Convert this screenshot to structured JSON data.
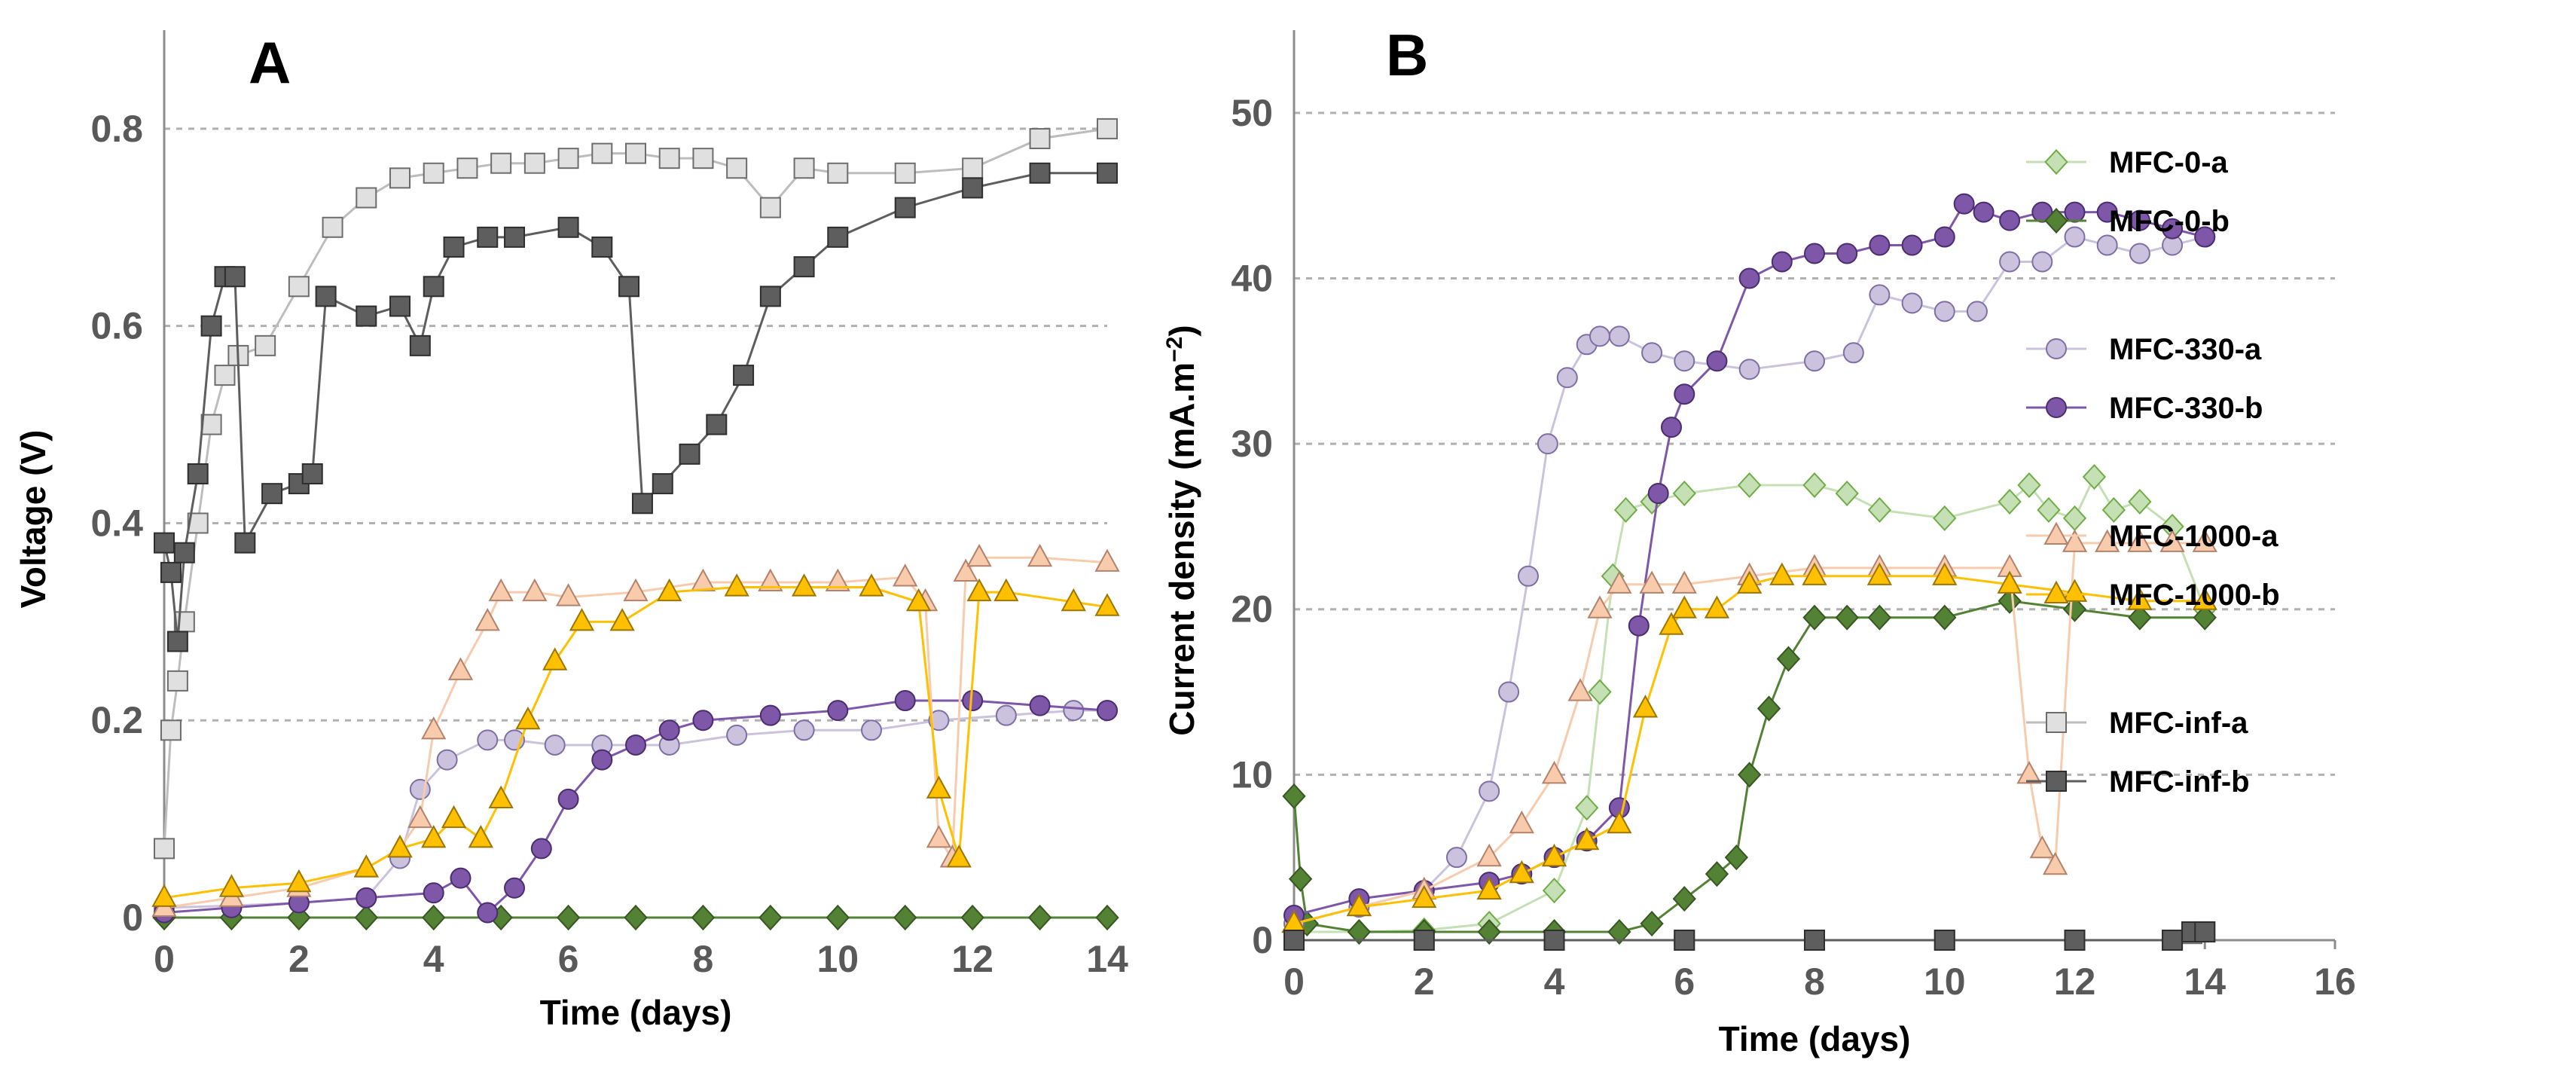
{
  "chart_data": [
    {
      "panel": "A",
      "type": "scatter",
      "title": "A",
      "xlabel": "Time (days)",
      "ylabel": "Voltage (V)",
      "xlim": [
        0,
        14
      ],
      "ylim": [
        0,
        0.9
      ],
      "xticks": [
        "0",
        "2",
        "4",
        "6",
        "8",
        "10",
        "12",
        "14"
      ],
      "yticks": [
        "0",
        "0.2",
        "0.4",
        "0.6",
        "0.8"
      ],
      "grid": "horizontal dashed",
      "series": [
        {
          "name": "MFC-0-a",
          "color": "#c5e0b4",
          "edge": "#70ad47",
          "marker": "diamond",
          "x": [
            0,
            1,
            2,
            3,
            4,
            5,
            6,
            7,
            8,
            9,
            10,
            11,
            12,
            13,
            14
          ],
          "y": [
            0,
            0,
            0,
            0,
            0,
            0,
            0,
            0,
            0,
            0,
            0,
            0,
            0,
            0,
            0
          ]
        },
        {
          "name": "MFC-0-b",
          "color": "#548235",
          "edge": "#385723",
          "marker": "diamond",
          "x": [
            0,
            1,
            2,
            3,
            4,
            5,
            6,
            7,
            8,
            9,
            10,
            11,
            12,
            13,
            14
          ],
          "y": [
            0,
            0,
            0,
            0,
            0,
            0,
            0,
            0,
            0,
            0,
            0,
            0,
            0,
            0,
            0
          ]
        },
        {
          "name": "MFC-330-a",
          "color": "#cbc3dd",
          "edge": "#7f6fa6",
          "marker": "circle",
          "x": [
            0,
            1,
            2,
            3,
            3.5,
            3.8,
            4.2,
            4.8,
            5.2,
            5.8,
            6.5,
            7.5,
            8.5,
            9.5,
            10.5,
            11.5,
            12.5,
            13.5,
            14
          ],
          "y": [
            0.01,
            0.012,
            0.015,
            0.02,
            0.06,
            0.13,
            0.16,
            0.18,
            0.18,
            0.175,
            0.175,
            0.175,
            0.185,
            0.19,
            0.19,
            0.2,
            0.205,
            0.21,
            0.21
          ]
        },
        {
          "name": "MFC-330-b",
          "color": "#7e57a8",
          "edge": "#4b2d70",
          "marker": "circle",
          "x": [
            0,
            1,
            2,
            3,
            4,
            4.4,
            4.8,
            5.2,
            5.6,
            6,
            6.5,
            7,
            7.5,
            8,
            9,
            10,
            11,
            12,
            13,
            14
          ],
          "y": [
            0.005,
            0.01,
            0.015,
            0.02,
            0.025,
            0.04,
            0.005,
            0.03,
            0.07,
            0.12,
            0.16,
            0.175,
            0.19,
            0.2,
            0.205,
            0.21,
            0.22,
            0.22,
            0.215,
            0.21
          ]
        },
        {
          "name": "MFC-1000-a",
          "color": "#f8cbad",
          "edge": "#b4826a",
          "marker": "triangle",
          "x": [
            0,
            1,
            2,
            3,
            3.5,
            3.8,
            4,
            4.4,
            4.8,
            5,
            5.5,
            6,
            7,
            8,
            9,
            10,
            11,
            11.3,
            11.5,
            11.7,
            11.9,
            12.1,
            13,
            14
          ],
          "y": [
            0.01,
            0.02,
            0.03,
            0.05,
            0.07,
            0.1,
            0.19,
            0.25,
            0.3,
            0.33,
            0.33,
            0.325,
            0.33,
            0.34,
            0.34,
            0.34,
            0.345,
            0.32,
            0.08,
            0.06,
            0.35,
            0.365,
            0.365,
            0.36
          ]
        },
        {
          "name": "MFC-1000-b",
          "color": "#ffc000",
          "edge": "#9c7600",
          "marker": "triangle",
          "x": [
            0,
            1,
            2,
            3,
            3.5,
            4,
            4.3,
            4.7,
            5,
            5.4,
            5.8,
            6.2,
            6.8,
            7.5,
            8.5,
            9.5,
            10.5,
            11.2,
            11.5,
            11.8,
            12.1,
            12.5,
            13.5,
            14
          ],
          "y": [
            0.02,
            0.03,
            0.035,
            0.05,
            0.07,
            0.08,
            0.1,
            0.08,
            0.12,
            0.2,
            0.26,
            0.3,
            0.3,
            0.33,
            0.335,
            0.335,
            0.335,
            0.32,
            0.13,
            0.06,
            0.33,
            0.33,
            0.32,
            0.315
          ]
        },
        {
          "name": "MFC-inf-a",
          "color": "#e0e0e0",
          "edge": "#6d6d6d",
          "marker": "square",
          "x": [
            0,
            0.1,
            0.2,
            0.3,
            0.5,
            0.7,
            0.9,
            1.1,
            1.5,
            2,
            2.5,
            3,
            3.5,
            4,
            4.5,
            5,
            5.5,
            6,
            6.5,
            7,
            7.5,
            8,
            8.5,
            9,
            9.5,
            10,
            11,
            12,
            13,
            14
          ],
          "y": [
            0.07,
            0.19,
            0.24,
            0.3,
            0.4,
            0.5,
            0.55,
            0.57,
            0.58,
            0.64,
            0.7,
            0.73,
            0.75,
            0.755,
            0.76,
            0.765,
            0.765,
            0.77,
            0.775,
            0.775,
            0.77,
            0.77,
            0.76,
            0.72,
            0.76,
            0.755,
            0.755,
            0.76,
            0.79,
            0.8
          ]
        },
        {
          "name": "MFC-inf-b",
          "color": "#5e5e5e",
          "edge": "#2e2e2e",
          "marker": "square",
          "x": [
            0,
            0.1,
            0.2,
            0.3,
            0.5,
            0.7,
            0.9,
            1.05,
            1.2,
            1.6,
            2,
            2.2,
            2.4,
            3,
            3.5,
            3.8,
            4,
            4.3,
            4.8,
            5.2,
            6,
            6.5,
            6.9,
            7.1,
            7.4,
            7.8,
            8.2,
            8.6,
            9,
            9.5,
            10,
            11,
            12,
            13,
            14
          ],
          "y": [
            0.38,
            0.35,
            0.28,
            0.37,
            0.45,
            0.6,
            0.65,
            0.65,
            0.38,
            0.43,
            0.44,
            0.45,
            0.63,
            0.61,
            0.62,
            0.58,
            0.64,
            0.68,
            0.69,
            0.69,
            0.7,
            0.68,
            0.64,
            0.42,
            0.44,
            0.47,
            0.5,
            0.55,
            0.63,
            0.66,
            0.69,
            0.72,
            0.74,
            0.755,
            0.755
          ]
        }
      ]
    },
    {
      "panel": "B",
      "type": "scatter",
      "title": "B",
      "xlabel": "Time (days)",
      "ylabel": "Current density (mA.m",
      "ylabel_sup": "−2",
      "ylabel_end": ")",
      "xlim": [
        0,
        16
      ],
      "ylim": [
        0,
        55
      ],
      "xticks": [
        "0",
        "2",
        "4",
        "6",
        "8",
        "10",
        "12",
        "14",
        "16"
      ],
      "yticks": [
        "0",
        "10",
        "20",
        "30",
        "40",
        "50"
      ],
      "grid": "horizontal dashed",
      "series": [
        {
          "name": "MFC-0-a",
          "color": "#c5e0b4",
          "edge": "#70ad47",
          "marker": "diamond",
          "x": [
            0,
            1,
            2,
            3,
            4,
            4.5,
            4.7,
            4.9,
            5.1,
            5.5,
            6,
            7,
            8,
            8.5,
            9,
            10,
            11,
            11.3,
            11.6,
            12,
            12.3,
            12.6,
            13,
            13.5,
            14
          ],
          "y": [
            0.5,
            0.5,
            0.6,
            1,
            3,
            8,
            15,
            22,
            26,
            26.5,
            27,
            27.5,
            27.5,
            27,
            26,
            25.5,
            26.5,
            27.5,
            26,
            25.5,
            28,
            26,
            26.5,
            25,
            20
          ]
        },
        {
          "name": "MFC-0-b",
          "color": "#548235",
          "edge": "#385723",
          "marker": "diamond",
          "x": [
            0,
            0.1,
            0.2,
            1,
            2,
            3,
            4,
            5,
            5.5,
            6,
            6.5,
            6.8,
            7,
            7.3,
            7.6,
            8,
            8.5,
            9,
            10,
            11,
            12,
            13,
            14
          ],
          "y": [
            8.7,
            3.7,
            1,
            0.5,
            0.5,
            0.5,
            0.5,
            0.5,
            1,
            2.5,
            4,
            5,
            10,
            14,
            17,
            19.5,
            19.5,
            19.5,
            19.5,
            20.5,
            20,
            19.5,
            19.5
          ]
        },
        {
          "name": "MFC-330-a",
          "color": "#cbc3dd",
          "edge": "#7f6fa6",
          "marker": "circle",
          "x": [
            0,
            1,
            2,
            2.5,
            3,
            3.3,
            3.6,
            3.9,
            4.2,
            4.5,
            4.7,
            5,
            5.5,
            6,
            7,
            8,
            8.6,
            9,
            9.5,
            10,
            10.5,
            11,
            11.5,
            12,
            12.5,
            13,
            13.5,
            14
          ],
          "y": [
            1,
            2,
            3,
            5,
            9,
            15,
            22,
            30,
            34,
            36,
            36.5,
            36.5,
            35.5,
            35,
            34.5,
            35,
            35.5,
            39,
            38.5,
            38,
            38,
            41,
            41,
            42.5,
            42,
            41.5,
            42,
            42.5
          ]
        },
        {
          "name": "MFC-330-b",
          "color": "#7e57a8",
          "edge": "#4b2d70",
          "marker": "circle",
          "x": [
            0,
            1,
            2,
            3,
            3.5,
            4,
            4.5,
            5,
            5.3,
            5.6,
            5.8,
            6,
            6.5,
            7,
            7.5,
            8,
            8.5,
            9,
            9.5,
            10,
            10.3,
            10.6,
            11,
            11.5,
            12,
            12.5,
            13,
            13.5,
            14
          ],
          "y": [
            1.5,
            2.5,
            3,
            3.5,
            4,
            5,
            6,
            8,
            19,
            27,
            31,
            33,
            35,
            40,
            41,
            41.5,
            41.5,
            42,
            42,
            42.5,
            44.5,
            44,
            43.5,
            44,
            44,
            44,
            43.5,
            43,
            42.5
          ]
        },
        {
          "name": "MFC-1000-a",
          "color": "#f8cbad",
          "edge": "#b4826a",
          "marker": "triangle",
          "x": [
            0,
            1,
            2,
            3,
            3.5,
            4,
            4.4,
            4.7,
            5,
            5.5,
            6,
            7,
            8,
            9,
            10,
            11,
            11.3,
            11.5,
            11.7,
            12,
            12.5,
            13,
            13.5,
            14
          ],
          "y": [
            1,
            2,
            3,
            5,
            7,
            10,
            15,
            20,
            21.5,
            21.5,
            21.5,
            22,
            22.5,
            22.5,
            22.5,
            22.5,
            10,
            5.5,
            4.5,
            24,
            24,
            24,
            24,
            24
          ]
        },
        {
          "name": "MFC-1000-b",
          "color": "#ffc000",
          "edge": "#9c7600",
          "marker": "triangle",
          "x": [
            0,
            1,
            2,
            3,
            3.5,
            4,
            4.5,
            5,
            5.4,
            5.8,
            6,
            6.5,
            7,
            7.5,
            8,
            9,
            10,
            11,
            12,
            13,
            14
          ],
          "y": [
            1,
            2,
            2.5,
            3,
            4,
            5,
            6,
            7,
            14,
            19,
            20,
            20,
            21.5,
            22,
            22,
            22,
            22,
            21.5,
            21,
            20.5,
            20.5
          ]
        },
        {
          "name": "MFC-inf-a",
          "color": "#e0e0e0",
          "edge": "#6d6d6d",
          "marker": "square",
          "x": [
            0,
            2,
            4,
            6,
            8,
            10,
            12,
            13.5,
            13.8,
            14
          ],
          "y": [
            0,
            0,
            0,
            0,
            0,
            0,
            0,
            0,
            0.4,
            0.5
          ]
        },
        {
          "name": "MFC-inf-b",
          "color": "#5e5e5e",
          "edge": "#2e2e2e",
          "marker": "square",
          "x": [
            0,
            2,
            4,
            6,
            8,
            10,
            12,
            13.5,
            13.8,
            14
          ],
          "y": [
            0,
            0,
            0,
            0,
            0,
            0,
            0,
            0,
            0.5,
            0.5
          ]
        }
      ],
      "legend": {
        "placement": "right",
        "entries": [
          "MFC-0-a",
          "MFC-0-b",
          "MFC-330-a",
          "MFC-330-b",
          "MFC-1000-a",
          "MFC-1000-b",
          "MFC-inf-a",
          "MFC-inf-b"
        ]
      }
    }
  ]
}
